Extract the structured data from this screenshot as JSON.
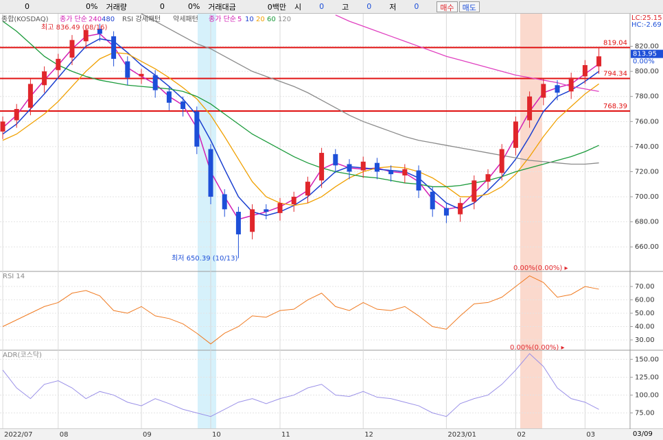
{
  "toolbar": {
    "items": [
      "0",
      "0%",
      "거래량",
      "0",
      "0%",
      "거래대금",
      "0백만",
      "시",
      "0",
      "고",
      "0",
      "저",
      "0"
    ],
    "buttons": [
      "매수",
      "매도"
    ]
  },
  "legend": {
    "index": "종합(KOSDAQ)",
    "long_label": "종가 단순",
    "long_periods": [
      "240",
      "480"
    ],
    "rsi": "RSI 강세패턴",
    "rsi_weak": "약세패턴",
    "short_label": "종가 단순",
    "short_periods": [
      "5",
      "10",
      "20",
      "60",
      "120"
    ]
  },
  "chart_data": [
    {
      "type": "candlestick",
      "categories": [
        "2022/07",
        null,
        null,
        null,
        "08",
        null,
        null,
        null,
        null,
        null,
        "09",
        null,
        null,
        null,
        null,
        "10",
        null,
        null,
        null,
        null,
        "11",
        null,
        null,
        null,
        null,
        null,
        "12",
        null,
        null,
        null,
        null,
        null,
        "2023/01",
        null,
        null,
        null,
        null,
        "02",
        null,
        null,
        null,
        null,
        "03",
        null
      ],
      "open": [
        752,
        761,
        771,
        789,
        801,
        811,
        824,
        834,
        828,
        808,
        796,
        797,
        784,
        776,
        768,
        738,
        702,
        688,
        672,
        690,
        687,
        694,
        701,
        713,
        734,
        726,
        721,
        727,
        721,
        717,
        721,
        704,
        691,
        686,
        696,
        712,
        719,
        739,
        761,
        779,
        789,
        784,
        796,
        804
      ],
      "high": [
        764,
        774,
        794,
        804,
        814,
        829,
        837,
        838,
        832,
        812,
        802,
        801,
        788,
        780,
        772,
        742,
        706,
        692,
        694,
        694,
        699,
        704,
        716,
        739,
        738,
        730,
        732,
        731,
        725,
        726,
        725,
        708,
        695,
        699,
        717,
        722,
        742,
        764,
        784,
        794,
        793,
        799,
        809,
        819
      ],
      "low": [
        746,
        755,
        765,
        783,
        795,
        805,
        818,
        824,
        804,
        789,
        790,
        779,
        769,
        764,
        734,
        694,
        684,
        651,
        666,
        682,
        681,
        688,
        695,
        707,
        719,
        714,
        715,
        714,
        712,
        711,
        699,
        684,
        679,
        680,
        690,
        706,
        713,
        733,
        755,
        773,
        777,
        778,
        790,
        798
      ],
      "close": [
        760,
        770,
        790,
        800,
        810,
        825,
        833,
        830,
        810,
        795,
        798,
        785,
        775,
        770,
        740,
        700,
        690,
        670,
        690,
        688,
        695,
        700,
        712,
        735,
        725,
        720,
        728,
        720,
        718,
        722,
        705,
        690,
        685,
        695,
        713,
        718,
        738,
        760,
        780,
        790,
        783,
        795,
        805,
        812
      ],
      "up_color": "#e0262b",
      "down_color": "#1d4fd8",
      "series": [
        {
          "name": "5",
          "color": "#d21fb4",
          "values": [
            755,
            765,
            780,
            793,
            805,
            818,
            828,
            830,
            820,
            803,
            796,
            790,
            780,
            773,
            755,
            720,
            700,
            682,
            685,
            688,
            692,
            698,
            705,
            722,
            727,
            723,
            722,
            723,
            720,
            719,
            712,
            698,
            690,
            692,
            703,
            714,
            728,
            748,
            768,
            783,
            787,
            790,
            798,
            806
          ]
        },
        {
          "name": "10",
          "color": "#1a3fd0",
          "values": [
            750,
            758,
            770,
            782,
            795,
            808,
            820,
            826,
            824,
            815,
            805,
            797,
            788,
            778,
            765,
            745,
            722,
            700,
            688,
            685,
            688,
            693,
            700,
            710,
            720,
            724,
            723,
            722,
            721,
            720,
            715,
            705,
            695,
            690,
            695,
            705,
            716,
            730,
            748,
            768,
            780,
            785,
            792,
            800
          ]
        },
        {
          "name": "20",
          "color": "#f0a000",
          "values": [
            745,
            750,
            758,
            766,
            776,
            788,
            800,
            810,
            815,
            814,
            808,
            802,
            795,
            787,
            778,
            765,
            748,
            730,
            712,
            700,
            695,
            693,
            695,
            700,
            708,
            715,
            720,
            723,
            724,
            723,
            720,
            715,
            708,
            700,
            700,
            702,
            708,
            718,
            732,
            748,
            762,
            772,
            782,
            790
          ]
        },
        {
          "name": "60",
          "color": "#1a9a3a",
          "values": [
            840,
            832,
            822,
            812,
            805,
            800,
            796,
            793,
            791,
            789,
            788,
            787,
            786,
            784,
            780,
            774,
            766,
            758,
            750,
            744,
            738,
            732,
            727,
            723,
            720,
            718,
            716,
            715,
            713,
            711,
            710,
            708,
            708,
            709,
            711,
            713,
            716,
            720,
            723,
            726,
            729,
            732,
            736,
            741
          ]
        },
        {
          "name": "120",
          "color": "#8a8a8a",
          "values": [
            null,
            null,
            null,
            null,
            null,
            null,
            null,
            null,
            null,
            null,
            846,
            840,
            834,
            828,
            822,
            818,
            812,
            806,
            800,
            796,
            792,
            788,
            783,
            777,
            771,
            765,
            760,
            756,
            752,
            748,
            745,
            743,
            741,
            739,
            737,
            735,
            733,
            731,
            729,
            728,
            727,
            726,
            726,
            727
          ]
        },
        {
          "name": "240",
          "color": "#e040c0",
          "values": [
            null,
            null,
            null,
            null,
            null,
            null,
            null,
            null,
            null,
            null,
            null,
            null,
            null,
            null,
            null,
            null,
            null,
            null,
            null,
            null,
            null,
            null,
            null,
            null,
            845,
            840,
            836,
            832,
            828,
            824,
            820,
            816,
            812,
            809,
            806,
            803,
            800,
            797,
            795,
            793,
            791,
            788,
            786,
            784
          ]
        }
      ],
      "levels": [
        819.04,
        794.34,
        768.39
      ],
      "level_color": "#e01010",
      "ylim": [
        641,
        846
      ],
      "yticks": [
        {
          "value": 820,
          "label": "820.00"
        },
        {
          "value": 800,
          "label": "800.00"
        },
        {
          "value": 780,
          "label": "780.00"
        },
        {
          "value": 760,
          "label": "760.00"
        },
        {
          "value": 740,
          "label": "740.00"
        },
        {
          "value": 720,
          "label": "720.00"
        },
        {
          "value": 700,
          "label": "700.00"
        },
        {
          "value": 680,
          "label": "680.00"
        },
        {
          "value": 660,
          "label": "660.00"
        }
      ],
      "grid": true,
      "last": 813.95,
      "change": "0.00%",
      "lc": "LC:25.15",
      "hc": "HC:-2.69",
      "annotations": [
        "최고 836.49 (08/16)",
        "최저 650.39 (10/13)",
        "0.00%(0.00%) ▸"
      ]
    },
    {
      "type": "line",
      "title": "RSI 14",
      "color": "#f07a20",
      "values": [
        40,
        45,
        50,
        55,
        58,
        65,
        67,
        63,
        52,
        50,
        55,
        48,
        46,
        42,
        35,
        27,
        35,
        40,
        48,
        47,
        52,
        53,
        60,
        65,
        55,
        52,
        58,
        53,
        52,
        55,
        48,
        40,
        38,
        48,
        57,
        58,
        62,
        70,
        78,
        73,
        62,
        64,
        70,
        68
      ],
      "ylim": [
        22.8,
        80.8
      ],
      "yticks": [
        {
          "value": 70,
          "label": "70.00"
        },
        {
          "value": 60,
          "label": "60.00"
        },
        {
          "value": 50,
          "label": "50.00"
        },
        {
          "value": 40,
          "label": "40.00"
        },
        {
          "value": 30,
          "label": "30.00"
        }
      ],
      "grid": true
    },
    {
      "type": "line",
      "title": "ADR(코스닥)",
      "color": "#9a90e8",
      "values": [
        135,
        110,
        95,
        115,
        120,
        110,
        95,
        105,
        100,
        90,
        85,
        95,
        88,
        80,
        75,
        70,
        80,
        90,
        95,
        88,
        95,
        100,
        110,
        115,
        100,
        98,
        105,
        97,
        95,
        90,
        85,
        75,
        70,
        88,
        95,
        100,
        115,
        135,
        158,
        140,
        110,
        95,
        90,
        80
      ],
      "ylim": [
        53.4,
        161.8
      ],
      "yticks": [
        {
          "value": 150,
          "label": "150.00"
        },
        {
          "value": 125,
          "label": "125.00"
        },
        {
          "value": 100,
          "label": "100.00"
        },
        {
          "value": 75,
          "label": "75.00"
        }
      ],
      "grid": true,
      "annotations": [
        "0.00%(0.00%) ▸"
      ]
    }
  ],
  "date_label": "03/09"
}
